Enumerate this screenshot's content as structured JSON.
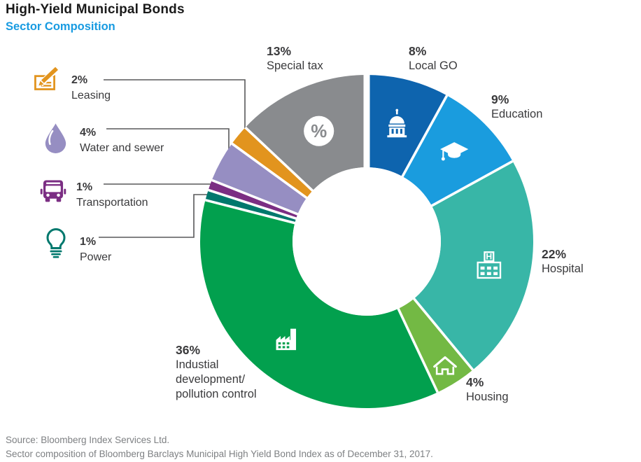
{
  "header": {
    "title": "High-Yield Municipal Bonds",
    "subtitle": "Sector Composition",
    "subtitle_color": "#189BE1"
  },
  "chart_data": {
    "type": "pie",
    "subtype": "donut",
    "title": "High-Yield Municipal Bonds — Sector Composition",
    "total": 100,
    "direction": "clockwise",
    "start_angle_deg": 0,
    "center": [
      524,
      345
    ],
    "outer_radius": 238,
    "inner_radius": 106,
    "slices": [
      {
        "id": "local-go",
        "label": "Local GO",
        "pct_label": "8%",
        "value": 8,
        "color": "#0E64AE",
        "icon": "capitol-icon",
        "icon_r": 174,
        "icon_size": 46
      },
      {
        "id": "education",
        "label": "Education",
        "pct_label": "9%",
        "value": 9,
        "color": "#1A9CDE",
        "icon": "graduation-cap-icon",
        "icon_r": 177,
        "icon_size": 46
      },
      {
        "id": "hospital",
        "label": "Hospital",
        "pct_label": "22%",
        "value": 22,
        "color": "#38B6A7",
        "icon": "hospital-icon",
        "icon_r": 178,
        "icon_size": 47
      },
      {
        "id": "housing",
        "label": "Housing",
        "pct_label": "4%",
        "value": 4,
        "color": "#73B944",
        "icon": "house-icon",
        "icon_r": 209,
        "icon_size": 42
      },
      {
        "id": "industrial",
        "label": "Industial development/pollution control",
        "display_label": "Industial\ndevelopment/\npollution control",
        "pct_label": "36%",
        "value": 36,
        "color": "#02A04E",
        "icon": "factory-icon",
        "icon_r": 178,
        "icon_size": 48
      },
      {
        "id": "power",
        "label": "Power",
        "pct_label": "1%",
        "value": 1,
        "color": "#00786D"
      },
      {
        "id": "transportation",
        "label": "Transportation",
        "pct_label": "1%",
        "value": 1,
        "color": "#7B2E83"
      },
      {
        "id": "water-sewer",
        "label": "Water and sewer",
        "pct_label": "4%",
        "value": 4,
        "color": "#968EC2"
      },
      {
        "id": "leasing",
        "label": "Leasing",
        "pct_label": "2%",
        "value": 2,
        "color": "#E2941E"
      },
      {
        "id": "special-tax",
        "label": "Special tax",
        "pct_label": "13%",
        "value": 13,
        "color": "#898B8E",
        "icon": "percent-icon",
        "icon_r": 172,
        "icon_size": 46
      }
    ]
  },
  "footer": {
    "line1": "Source: Bloomberg Index Services Ltd.",
    "line2": "Sector composition of Bloomberg Barclays Municipal High Yield Bond Index as of December 31, 2017."
  }
}
